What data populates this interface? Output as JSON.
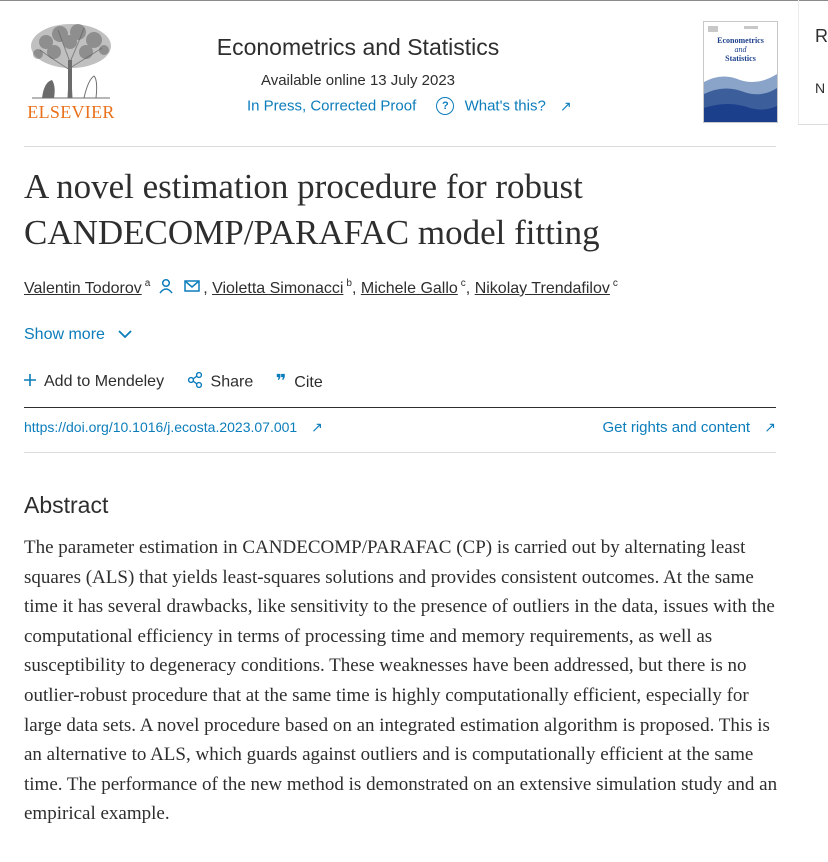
{
  "publisher": {
    "name": "ELSEVIER"
  },
  "journal": {
    "title": "Econometrics and Statistics",
    "available": "Available online 13 July 2023",
    "status": "In Press, Corrected Proof",
    "whats_this": "What's this?",
    "cover_title_line1": "Econometrics",
    "cover_title_line2": "and",
    "cover_title_line3": "Statistics"
  },
  "sidebar": {
    "partial_heading": "R",
    "partial_text": "N"
  },
  "article": {
    "title": "A novel estimation procedure for robust CANDECOMP/PARAFAC model fitting",
    "authors": [
      {
        "name": "Valentin Todorov",
        "aff": "a"
      },
      {
        "name": "Violetta Simonacci",
        "aff": "b"
      },
      {
        "name": "Michele Gallo",
        "aff": "c"
      },
      {
        "name": "Nikolay Trendafilov",
        "aff": "c"
      }
    ],
    "show_more": "Show more",
    "doi": "https://doi.org/10.1016/j.ecosta.2023.07.001",
    "rights": "Get rights and content"
  },
  "actions": {
    "mendeley": "Add to Mendeley",
    "share": "Share",
    "cite": "Cite"
  },
  "abstract": {
    "heading": "Abstract",
    "text": "The parameter estimation in CANDECOMP/PARAFAC (CP) is carried out by alternating least squares (ALS) that yields least-squares solutions and provides consistent outcomes. At the same time it has several drawbacks, like sensitivity to the presence of outliers in the data, issues with the computational efficiency in terms of processing time and memory requirements, as well as susceptibility to degeneracy conditions. These weaknesses have been addressed, but there is no outlier-robust procedure that at the same time is highly computationally efficient, especially for large data sets. A novel procedure based on an integrated estimation algorithm is proposed. This is an alternative to ALS, which guards against outliers and is computationally efficient at the same time. The performance of the new method is demonstrated on an extensive simulation study and an empirical example."
  },
  "colors": {
    "link": "#0c7dbb",
    "brand": "#e9711c",
    "text": "#2e2e2e"
  },
  "icons": [
    "tree-logo-icon",
    "question-icon",
    "external-link-icon",
    "person-icon",
    "mail-icon",
    "chevron-down-icon",
    "plus-icon",
    "share-icon",
    "quote-icon"
  ]
}
